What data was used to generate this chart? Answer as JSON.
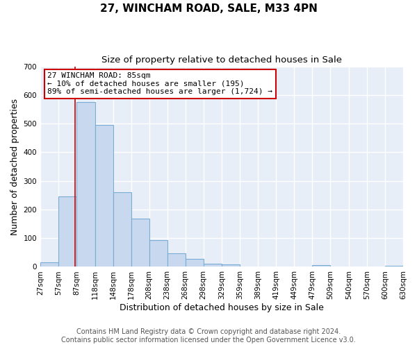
{
  "title": "27, WINCHAM ROAD, SALE, M33 4PN",
  "subtitle": "Size of property relative to detached houses in Sale",
  "xlabel": "Distribution of detached houses by size in Sale",
  "ylabel": "Number of detached properties",
  "bin_edges": [
    27,
    57,
    87,
    118,
    148,
    178,
    208,
    238,
    268,
    298,
    329,
    359,
    389,
    419,
    449,
    479,
    509,
    540,
    570,
    600,
    630
  ],
  "bar_heights": [
    15,
    245,
    575,
    495,
    260,
    168,
    93,
    48,
    27,
    12,
    8,
    0,
    2,
    0,
    0,
    5,
    0,
    0,
    0,
    3
  ],
  "bar_color": "#c8d8ee",
  "bar_edge_color": "#7aadd4",
  "property_size": 85,
  "vline_color": "#cc0000",
  "annotation_line1": "27 WINCHAM ROAD: 85sqm",
  "annotation_line2": "← 10% of detached houses are smaller (195)",
  "annotation_line3": "89% of semi-detached houses are larger (1,724) →",
  "annotation_box_color": "#ffffff",
  "annotation_box_edge_color": "#cc0000",
  "ylim": [
    0,
    700
  ],
  "yticks": [
    0,
    100,
    200,
    300,
    400,
    500,
    600,
    700
  ],
  "tick_labels": [
    "27sqm",
    "57sqm",
    "87sqm",
    "118sqm",
    "148sqm",
    "178sqm",
    "208sqm",
    "238sqm",
    "268sqm",
    "298sqm",
    "329sqm",
    "359sqm",
    "389sqm",
    "419sqm",
    "449sqm",
    "479sqm",
    "509sqm",
    "540sqm",
    "570sqm",
    "600sqm",
    "630sqm"
  ],
  "footer_line1": "Contains HM Land Registry data © Crown copyright and database right 2024.",
  "footer_line2": "Contains public sector information licensed under the Open Government Licence v3.0.",
  "plot_bg_color": "#e8eef8",
  "fig_bg_color": "#ffffff",
  "grid_color": "#ffffff",
  "title_fontsize": 11,
  "subtitle_fontsize": 9.5,
  "axis_label_fontsize": 9,
  "tick_fontsize": 7.5,
  "annotation_fontsize": 8,
  "footer_fontsize": 7
}
